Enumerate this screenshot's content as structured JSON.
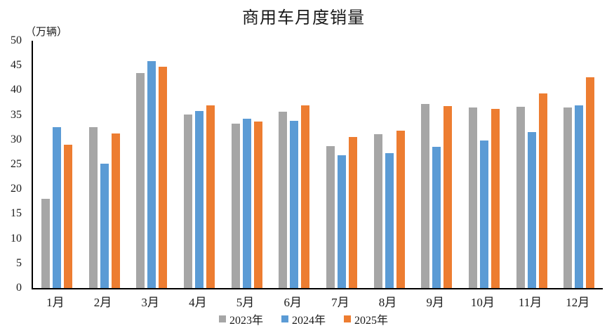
{
  "chart_data": {
    "type": "bar",
    "title": "商用车月度销量",
    "unit_label": "（万辆）",
    "categories": [
      "1月",
      "2月",
      "3月",
      "4月",
      "5月",
      "6月",
      "7月",
      "8月",
      "9月",
      "10月",
      "11月",
      "12月"
    ],
    "series": [
      {
        "name": "2023年",
        "color": "#A6A6A6",
        "values": [
          18.1,
          32.5,
          43.5,
          35.1,
          33.2,
          35.6,
          28.7,
          31.1,
          37.2,
          36.5,
          36.7,
          36.5
        ]
      },
      {
        "name": "2024年",
        "color": "#5B9BD5",
        "values": [
          32.5,
          25.2,
          45.9,
          35.8,
          34.2,
          33.8,
          26.9,
          27.3,
          28.5,
          29.9,
          31.6,
          37.0
        ]
      },
      {
        "name": "2025年",
        "color": "#ED7D31",
        "values": [
          29.0,
          31.3,
          44.8,
          36.9,
          33.6,
          37.0,
          30.6,
          31.8,
          36.8,
          36.2,
          39.3,
          42.6
        ]
      }
    ],
    "ylim": [
      0,
      50
    ],
    "yticks": [
      0,
      5,
      10,
      15,
      20,
      25,
      30,
      35,
      40,
      45,
      50
    ],
    "grid": false,
    "legend_position": "bottom",
    "axis_color": "#000000",
    "text_color": "#1a1a1a"
  }
}
